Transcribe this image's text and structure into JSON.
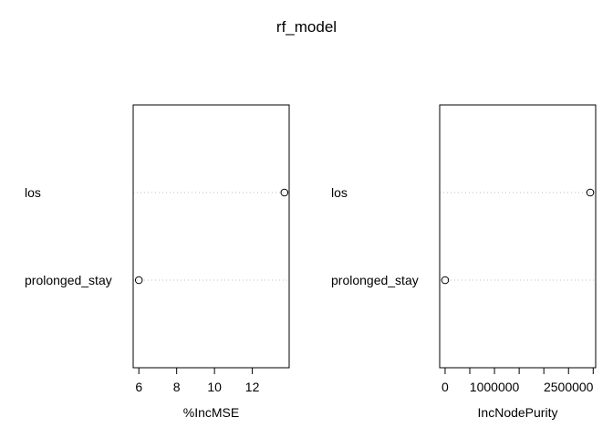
{
  "title": "rf_model",
  "chart_data": [
    {
      "type": "scatter",
      "xlabel": "%IncMSE",
      "categories": [
        "los",
        "prolonged_stay"
      ],
      "values": [
        13.7,
        6.0
      ],
      "xlim": [
        5.7,
        13.95
      ],
      "ticks": [
        6,
        8,
        10,
        12
      ],
      "tick_labels": [
        "6",
        "8",
        "10",
        "12"
      ]
    },
    {
      "type": "scatter",
      "xlabel": "IncNodePurity",
      "categories": [
        "los",
        "prolonged_stay"
      ],
      "values": [
        2940000,
        0
      ],
      "xlim": [
        -110000,
        3050000
      ],
      "ticks": [
        0,
        500000,
        1000000,
        1500000,
        2000000,
        2500000,
        3000000
      ],
      "tick_labels": [
        "0",
        "",
        "1000000",
        "",
        "",
        "2500000",
        ""
      ]
    }
  ]
}
